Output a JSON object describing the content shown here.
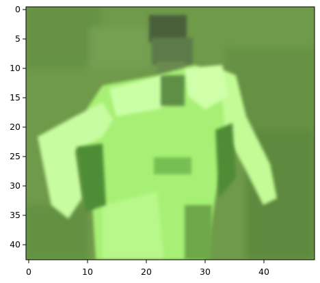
{
  "figure": {
    "kind": "pixelated image shown in matplotlib-style axes",
    "colors": {
      "background": "#6f9a4a",
      "field_dark": "#4f7e34",
      "shirt_light": "#c9ff9f",
      "shirt_mid": "#9eeb6c",
      "shirt_shadow": "#6fb34b",
      "head_dark": "#4a5f3b"
    },
    "x_ticks": [
      "0",
      "10",
      "20",
      "30",
      "40"
    ],
    "y_ticks": [
      "0",
      "5",
      "10",
      "15",
      "20",
      "25",
      "30",
      "35",
      "40"
    ]
  }
}
